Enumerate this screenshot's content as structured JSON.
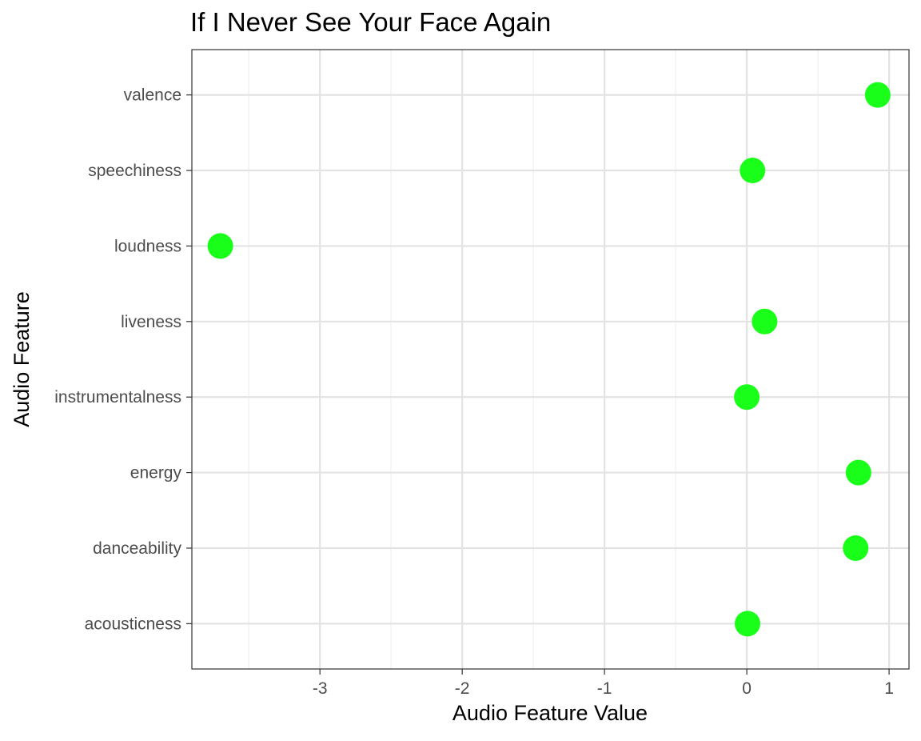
{
  "chart_data": {
    "type": "scatter",
    "title": "If I Never See Your Face Again",
    "xlabel": "Audio Feature Value",
    "ylabel": "Audio Feature",
    "xlim": [
      -3.9,
      1.14
    ],
    "x_ticks": [
      -3,
      -2,
      -1,
      0,
      1
    ],
    "x_tick_labels": [
      "-3",
      "-2",
      "-1",
      "0",
      "1"
    ],
    "categories": [
      "acousticness",
      "danceability",
      "energy",
      "instrumentalness",
      "liveness",
      "loudness",
      "speechiness",
      "valence"
    ],
    "series": [
      {
        "values": [
          0.005,
          0.765,
          0.785,
          0.0,
          0.125,
          -3.7,
          0.04,
          0.92
        ]
      }
    ],
    "point_color": "#1aff1a",
    "grid": true,
    "legend": "none"
  }
}
